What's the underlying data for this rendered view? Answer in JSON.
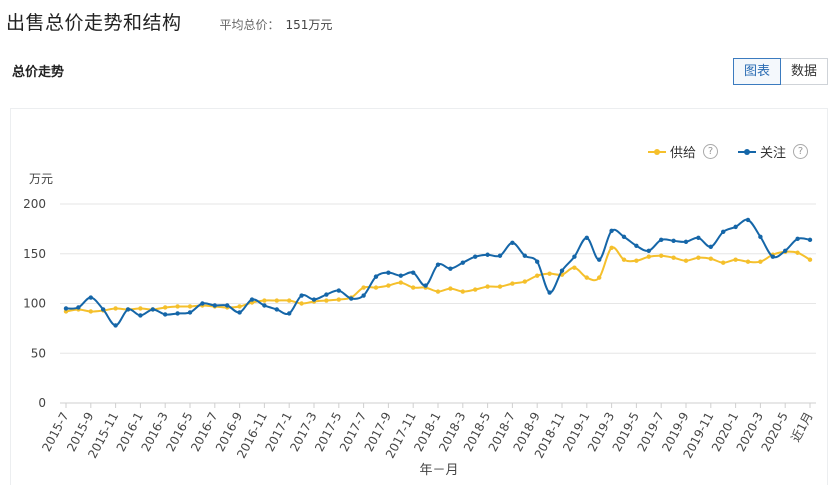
{
  "header": {
    "title": "出售总价走势和结构",
    "avg_label": "平均总价：",
    "avg_value": "151万元"
  },
  "section": {
    "title": "总价走势"
  },
  "toggle": {
    "chart_label": "图表",
    "data_label": "数据"
  },
  "legend": {
    "supply": "供给",
    "attention": "关注",
    "help": "?"
  },
  "colors": {
    "supply": "#f5c02c",
    "attention": "#1566a8",
    "grid": "#e6e6e6",
    "axis": "#555555"
  },
  "chart_data": {
    "type": "line",
    "title": "",
    "ylabel": "万元",
    "xlabel": "年－月",
    "ylim": [
      0,
      200
    ],
    "yticks": [
      0,
      50,
      100,
      150,
      200
    ],
    "grid": true,
    "legend_position": "top-right",
    "x_tick_labels": [
      "2015-7",
      "2015-9",
      "2015-11",
      "2016-1",
      "2016-3",
      "2016-5",
      "2016-7",
      "2016-9",
      "2016-11",
      "2017-1",
      "2017-3",
      "2017-5",
      "2017-7",
      "2017-9",
      "2017-11",
      "2018-1",
      "2018-3",
      "2018-5",
      "2018-7",
      "2018-9",
      "2018-11",
      "2019-1",
      "2019-3",
      "2019-5",
      "2019-7",
      "2019-9",
      "2019-11",
      "2020-1",
      "2020-3",
      "2020-5",
      "近1月"
    ],
    "x": [
      "2015-7",
      "2015-8",
      "2015-9",
      "2015-10",
      "2015-11",
      "2015-12",
      "2016-1",
      "2016-2",
      "2016-3",
      "2016-4",
      "2016-5",
      "2016-6",
      "2016-7",
      "2016-8",
      "2016-9",
      "2016-10",
      "2016-11",
      "2016-12",
      "2017-1",
      "2017-2",
      "2017-3",
      "2017-4",
      "2017-5",
      "2017-6",
      "2017-7",
      "2017-8",
      "2017-9",
      "2017-10",
      "2017-11",
      "2017-12",
      "2018-1",
      "2018-2",
      "2018-3",
      "2018-4",
      "2018-5",
      "2018-6",
      "2018-7",
      "2018-8",
      "2018-9",
      "2018-10",
      "2018-11",
      "2018-12",
      "2019-1",
      "2019-2",
      "2019-3",
      "2019-4",
      "2019-5",
      "2019-6",
      "2019-7",
      "2019-8",
      "2019-9",
      "2019-10",
      "2019-11",
      "2019-12",
      "2020-1",
      "2020-2",
      "2020-3",
      "2020-4",
      "2020-5",
      "2020-6",
      "近1月"
    ],
    "series": [
      {
        "name": "供给",
        "color": "#f5c02c",
        "values": [
          92,
          94,
          92,
          93,
          95,
          94,
          95,
          94,
          96,
          97,
          97,
          98,
          97,
          96,
          97,
          101,
          103,
          103,
          103,
          100,
          102,
          103,
          104,
          106,
          116,
          116,
          118,
          121,
          116,
          116,
          112,
          115,
          112,
          114,
          117,
          117,
          120,
          122,
          128,
          130,
          129,
          136,
          126,
          126,
          156,
          144,
          143,
          147,
          148,
          146,
          143,
          146,
          145,
          141,
          144,
          142,
          142,
          149,
          152,
          151,
          144
        ]
      },
      {
        "name": "关注",
        "color": "#1566a8",
        "values": [
          95,
          96,
          106,
          94,
          78,
          94,
          88,
          94,
          89,
          90,
          91,
          100,
          98,
          98,
          91,
          104,
          98,
          94,
          90,
          108,
          104,
          109,
          113,
          105,
          108,
          127,
          131,
          128,
          131,
          118,
          139,
          135,
          141,
          147,
          149,
          148,
          161,
          148,
          142,
          111,
          133,
          147,
          166,
          144,
          173,
          167,
          158,
          153,
          164,
          163,
          162,
          166,
          157,
          172,
          177,
          184,
          167,
          147,
          153,
          165,
          164
        ]
      }
    ]
  }
}
